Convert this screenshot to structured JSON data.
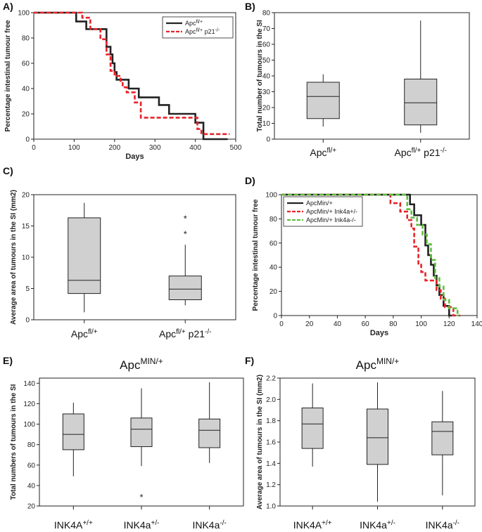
{
  "colors": {
    "black": "#222222",
    "red": "#e8232a",
    "green": "#5fbf3f",
    "box_fill": "#d0d0d0"
  },
  "chart_data": [
    {
      "id": "A",
      "type": "line",
      "panel_label": "A)",
      "xlabel": "Days",
      "ylabel": "Percentage intestinal tumour free",
      "xlim": [
        0,
        500
      ],
      "ylim": [
        0,
        100
      ],
      "xticks": [
        "0",
        "100",
        "200",
        "300",
        "400",
        "500"
      ],
      "yticks": [
        "0",
        "20",
        "40",
        "60",
        "80",
        "100"
      ],
      "series": [
        {
          "name": "Apcfl/+",
          "legend": {
            "base": "Apc",
            "sup": "fl/+",
            "rest": ""
          },
          "color": "#222222",
          "dash": false,
          "x": [
            0,
            105,
            130,
            180,
            190,
            195,
            200,
            205,
            215,
            235,
            260,
            310,
            335,
            400,
            420,
            480
          ],
          "y": [
            100,
            93,
            87,
            73,
            67,
            60,
            53,
            47,
            47,
            40,
            33,
            27,
            20,
            13,
            0,
            0
          ]
        },
        {
          "name": "Apcfl/+ p21-/-",
          "legend": {
            "base": "Apc",
            "sup": "fl/+",
            "rest": " p21",
            "sup2": "-/-"
          },
          "color": "#e8232a",
          "dash": true,
          "x": [
            0,
            120,
            140,
            165,
            180,
            190,
            200,
            215,
            220,
            230,
            250,
            265,
            405,
            415,
            485
          ],
          "y": [
            100,
            96,
            87,
            79,
            67,
            54,
            50,
            46,
            41,
            37,
            29,
            17,
            8,
            4,
            4
          ]
        }
      ]
    },
    {
      "id": "B",
      "type": "box",
      "panel_label": "B)",
      "ylabel": "Total number of tumours in the SI",
      "ylim": [
        0,
        80
      ],
      "yticks": [
        "0",
        "10",
        "20",
        "30",
        "40",
        "50",
        "60",
        "70",
        "80"
      ],
      "categories": [
        {
          "base": "Apc",
          "sup": "fl/+",
          "rest": ""
        },
        {
          "base": "Apc",
          "sup": "fl/+",
          "rest": " p21",
          "sup2": "-/-"
        }
      ],
      "boxes": [
        {
          "min": 8,
          "q1": 13,
          "median": 27,
          "q3": 36,
          "max": 41,
          "outliers": []
        },
        {
          "min": 4,
          "q1": 9,
          "median": 23,
          "q3": 38,
          "max": 75,
          "outliers": []
        }
      ]
    },
    {
      "id": "C",
      "type": "box",
      "panel_label": "C)",
      "ylabel": "Average area of tumours in the SI  (mm2)",
      "ylim": [
        0,
        20
      ],
      "yticks": [
        "0",
        "5",
        "10",
        "15",
        "20"
      ],
      "categories": [
        {
          "base": "Apc",
          "sup": "fl/+",
          "rest": ""
        },
        {
          "base": "Apc",
          "sup": "fl/+",
          "rest": " p21",
          "sup2": "-/-"
        }
      ],
      "boxes": [
        {
          "min": 1.2,
          "q1": 4.2,
          "median": 6.3,
          "q3": 16.3,
          "max": 18.7,
          "outliers": []
        },
        {
          "min": 2.3,
          "q1": 3.2,
          "median": 4.9,
          "q3": 7.0,
          "max": 12.0,
          "outliers": [
            14.1,
            16.6
          ]
        }
      ]
    },
    {
      "id": "D",
      "type": "line",
      "panel_label": "D)",
      "xlabel": "Days",
      "ylabel": "Percentage intestinal tumour free",
      "xlim": [
        0,
        140
      ],
      "ylim": [
        0,
        100
      ],
      "xticks": [
        "0",
        "20",
        "40",
        "60",
        "80",
        "100",
        "120",
        "140"
      ],
      "yticks": [
        "0",
        "20",
        "40",
        "60",
        "80",
        "100"
      ],
      "series": [
        {
          "name": "ApcMin/+",
          "legend": {
            "base": "ApcMin/+",
            "sup": "",
            "rest": ""
          },
          "color": "#222222",
          "dash": false,
          "x": [
            0,
            92,
            95,
            100,
            103,
            105,
            107,
            109,
            111,
            113,
            116,
            120,
            122
          ],
          "y": [
            100,
            92,
            83,
            75,
            58,
            50,
            42,
            33,
            25,
            17,
            8,
            0,
            0
          ]
        },
        {
          "name": "ApcMin/+ Ink4a+/-",
          "legend": {
            "base": "ApcMin/+ Ink4a+/-",
            "sup": "",
            "rest": ""
          },
          "color": "#e8232a",
          "dash": true,
          "x": [
            0,
            78,
            85,
            90,
            93,
            95,
            98,
            100,
            103,
            108,
            111,
            114,
            117,
            123,
            128
          ],
          "y": [
            100,
            93,
            86,
            79,
            72,
            57,
            43,
            36,
            29,
            29,
            21,
            14,
            7,
            0,
            0
          ]
        },
        {
          "name": "ApcMin/+ Ink4a-/-",
          "legend": {
            "base": "ApcMin/+ Ink4a-/-",
            "sup": "",
            "rest": ""
          },
          "color": "#5fbf3f",
          "dash": true,
          "x": [
            0,
            90,
            93,
            97,
            101,
            104,
            107,
            110,
            113,
            116,
            120,
            126,
            127
          ],
          "y": [
            100,
            88,
            81,
            75,
            67,
            59,
            46,
            31,
            24,
            13,
            6,
            0,
            0
          ]
        }
      ]
    },
    {
      "id": "E",
      "type": "box",
      "panel_label": "E)",
      "title": {
        "base": "Apc",
        "sup": "MIN/+"
      },
      "ylabel": "Total numbers of tumours in the SI",
      "ylim": [
        20,
        145
      ],
      "yticks": [
        "20",
        "40",
        "60",
        "80",
        "100",
        "120",
        "140"
      ],
      "categories": [
        {
          "base": "INK4A",
          "sup": "+/+",
          "rest": ""
        },
        {
          "base": "INK4a",
          "sup": "+/-",
          "rest": ""
        },
        {
          "base": "INK4a",
          "sup": "-/-",
          "rest": ""
        }
      ],
      "boxes": [
        {
          "min": 49,
          "q1": 75,
          "median": 90,
          "q3": 110,
          "max": 121,
          "outliers": []
        },
        {
          "min": 59,
          "q1": 78,
          "median": 95,
          "q3": 106,
          "max": 135,
          "outliers": [
            31
          ]
        },
        {
          "min": 62,
          "q1": 77,
          "median": 94,
          "q3": 105,
          "max": 141,
          "outliers": []
        }
      ]
    },
    {
      "id": "F",
      "type": "box",
      "panel_label": "F)",
      "title": {
        "base": "Apc",
        "sup": "MIN/+"
      },
      "ylabel": "Average area of tumours in the SI (mm2)",
      "ylim": [
        1.0,
        2.2
      ],
      "yticks": [
        "1.0",
        "1.2",
        "1.4",
        "1.6",
        "1.8",
        "2.0",
        "2.2"
      ],
      "categories": [
        {
          "base": "INK4A",
          "sup": "+/+",
          "rest": ""
        },
        {
          "base": "INK4a",
          "sup": "+/-",
          "rest": ""
        },
        {
          "base": "INK4a",
          "sup": "-/-",
          "rest": ""
        }
      ],
      "boxes": [
        {
          "min": 1.37,
          "q1": 1.54,
          "median": 1.77,
          "q3": 1.92,
          "max": 2.15,
          "outliers": []
        },
        {
          "min": 1.04,
          "q1": 1.39,
          "median": 1.64,
          "q3": 1.91,
          "max": 2.16,
          "outliers": []
        },
        {
          "min": 1.1,
          "q1": 1.48,
          "median": 1.7,
          "q3": 1.79,
          "max": 2.08,
          "outliers": []
        }
      ]
    }
  ]
}
